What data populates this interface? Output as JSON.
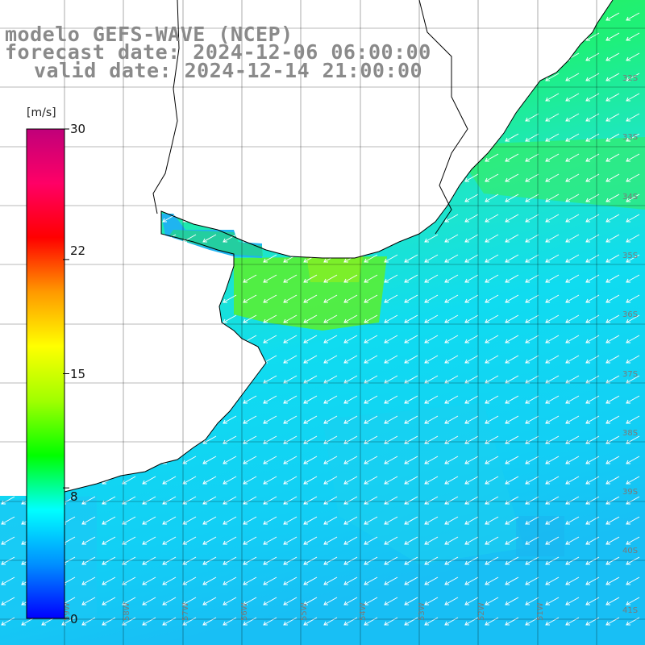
{
  "title": {
    "model": "modelo GEFS-WAVE (NCEP)",
    "forecast": "forecast date: 2024-12-06 06:00:00",
    "valid": "valid date: 2024-12-14 21:00:00"
  },
  "colorbar": {
    "unit": "[m/s]",
    "ticks": [
      "30",
      "22",
      "15",
      "8",
      "0"
    ],
    "tick_values": [
      30,
      22,
      15,
      8,
      0
    ],
    "range": [
      0,
      30
    ],
    "colors": [
      "#0000ff",
      "#0090ff",
      "#00ffff",
      "#00ff00",
      "#a0ff00",
      "#ffff00",
      "#ff9900",
      "#ff0000",
      "#ff0066",
      "#c0007a"
    ]
  },
  "map": {
    "lat_labels": [
      "32S",
      "33S",
      "34S",
      "35S",
      "36S",
      "37S",
      "38S",
      "39S",
      "40S",
      "41S"
    ],
    "lon_labels": [
      "59W",
      "58W",
      "57W",
      "56W",
      "55W",
      "54W",
      "53W",
      "52W",
      "51W"
    ],
    "land_color": "#ffffff",
    "coast_color": "#000000",
    "grid_color": "#000000",
    "arrow_color": "#ffffff"
  }
}
